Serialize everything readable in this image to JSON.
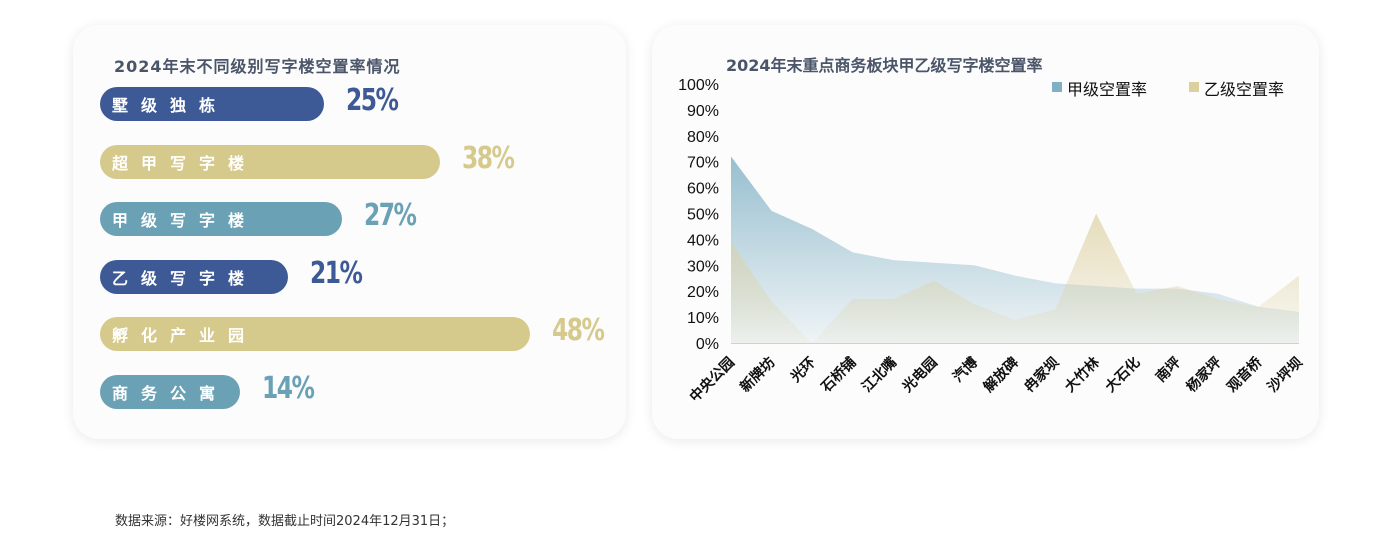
{
  "left_panel": {
    "title": "2024年末不同级别写字楼空置率情况",
    "bars": [
      {
        "label": "墅级独栋",
        "value": 25,
        "display": "25%",
        "color": "#3d5a96"
      },
      {
        "label": "超甲写字楼",
        "value": 38,
        "display": "38%",
        "color": "#d6c98c"
      },
      {
        "label": "甲级写字楼",
        "value": 27,
        "display": "27%",
        "color": "#6aa1b5"
      },
      {
        "label": "乙级写字楼",
        "value": 21,
        "display": "21%",
        "color": "#3d5a96"
      },
      {
        "label": "孵化产业园",
        "value": 48,
        "display": "48%",
        "color": "#d6c98c"
      },
      {
        "label": "商务公寓",
        "value": 14,
        "display": "14%",
        "color": "#6aa1b5"
      }
    ]
  },
  "chart_data": {
    "type": "area",
    "title": "2024年末重点商务板块甲乙级写字楼空置率",
    "categories": [
      "中央公园",
      "新牌坊",
      "光环",
      "石桥铺",
      "江北嘴",
      "光电园",
      "汽博",
      "解放碑",
      "冉家坝",
      "大竹林",
      "大石化",
      "南坪",
      "杨家坪",
      "观音桥",
      "沙坪坝"
    ],
    "series": [
      {
        "name": "甲级空置率",
        "values": [
          72,
          51,
          44,
          35,
          32,
          31,
          30,
          26,
          23,
          22,
          21,
          21,
          19,
          14,
          12
        ],
        "color": "#7fb0c4"
      },
      {
        "name": "乙级空置率",
        "values": [
          39,
          16,
          0,
          17,
          17,
          24,
          15,
          9,
          13,
          50,
          19,
          22,
          17,
          14,
          26
        ],
        "color": "#ddd0a0"
      }
    ],
    "ylim": [
      0,
      100
    ],
    "y_ticks": [
      "0%",
      "10%",
      "20%",
      "30%",
      "40%",
      "50%",
      "60%",
      "70%",
      "80%",
      "90%",
      "100%"
    ],
    "legend_position": "top-right",
    "grid": false
  },
  "footer": {
    "source_note": "数据来源：好楼网系统，数据截止时间2024年12月31日；"
  }
}
